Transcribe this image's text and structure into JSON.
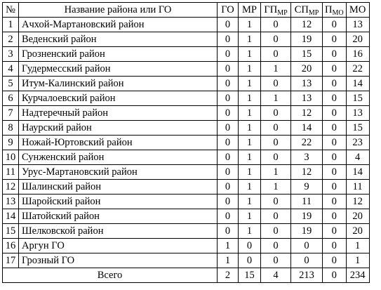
{
  "header": {
    "num": "№",
    "name": "Название района или ГО",
    "go": "ГО",
    "mr": "МР",
    "gp_main": "ГП",
    "gp_sub": "МР",
    "sp_main": "СП",
    "sp_sub": "МР",
    "p_main": "П",
    "p_sub": "МО",
    "mo": "МО"
  },
  "rows": [
    {
      "n": "1",
      "name": "Ачхой-Мартановский район",
      "go": "0",
      "mr": "1",
      "gp": "0",
      "sp": "12",
      "p": "0",
      "mo": "13"
    },
    {
      "n": "2",
      "name": "Веденский район",
      "go": "0",
      "mr": "1",
      "gp": "0",
      "sp": "19",
      "p": "0",
      "mo": "20"
    },
    {
      "n": "3",
      "name": "Грозненский район",
      "go": "0",
      "mr": "1",
      "gp": "0",
      "sp": "15",
      "p": "0",
      "mo": "16"
    },
    {
      "n": "4",
      "name": "Гудермесский район",
      "go": "0",
      "mr": "1",
      "gp": "1",
      "sp": "20",
      "p": "0",
      "mo": "22"
    },
    {
      "n": "5",
      "name": "Итум-Калинский район",
      "go": "0",
      "mr": "1",
      "gp": "0",
      "sp": "13",
      "p": "0",
      "mo": "14"
    },
    {
      "n": "6",
      "name": "Курчалоевский район",
      "go": "0",
      "mr": "1",
      "gp": "1",
      "sp": "13",
      "p": "0",
      "mo": "15"
    },
    {
      "n": "7",
      "name": "Надтеречный район",
      "go": "0",
      "mr": "1",
      "gp": "0",
      "sp": "12",
      "p": "0",
      "mo": "13"
    },
    {
      "n": "8",
      "name": "Наурский район",
      "go": "0",
      "mr": "1",
      "gp": "0",
      "sp": "14",
      "p": "0",
      "mo": "15"
    },
    {
      "n": "9",
      "name": "Ножай-Юртовский район",
      "go": "0",
      "mr": "1",
      "gp": "0",
      "sp": "22",
      "p": "0",
      "mo": "23"
    },
    {
      "n": "10",
      "name": "Сунженский район",
      "go": "0",
      "mr": "1",
      "gp": "0",
      "sp": "3",
      "p": "0",
      "mo": "4"
    },
    {
      "n": "11",
      "name": "Урус-Мартановский район",
      "go": "0",
      "mr": "1",
      "gp": "1",
      "sp": "12",
      "p": "0",
      "mo": "14"
    },
    {
      "n": "12",
      "name": "Шалинский район",
      "go": "0",
      "mr": "1",
      "gp": "1",
      "sp": "9",
      "p": "0",
      "mo": "11"
    },
    {
      "n": "13",
      "name": "Шаройский район",
      "go": "0",
      "mr": "1",
      "gp": "0",
      "sp": "11",
      "p": "0",
      "mo": "12"
    },
    {
      "n": "14",
      "name": "Шатойский район",
      "go": "0",
      "mr": "1",
      "gp": "0",
      "sp": "19",
      "p": "0",
      "mo": "20"
    },
    {
      "n": "15",
      "name": "Шелковской район",
      "go": "0",
      "mr": "1",
      "gp": "0",
      "sp": "19",
      "p": "0",
      "mo": "20"
    },
    {
      "n": "16",
      "name": "Аргун ГО",
      "go": "1",
      "mr": "0",
      "gp": "0",
      "sp": "0",
      "p": "0",
      "mo": "1"
    },
    {
      "n": "17",
      "name": "Грозный ГО",
      "go": "1",
      "mr": "0",
      "gp": "0",
      "sp": "0",
      "p": "0",
      "mo": "1"
    }
  ],
  "total": {
    "label": "Всего",
    "go": "2",
    "mr": "15",
    "gp": "4",
    "sp": "213",
    "p": "0",
    "mo": "234"
  }
}
